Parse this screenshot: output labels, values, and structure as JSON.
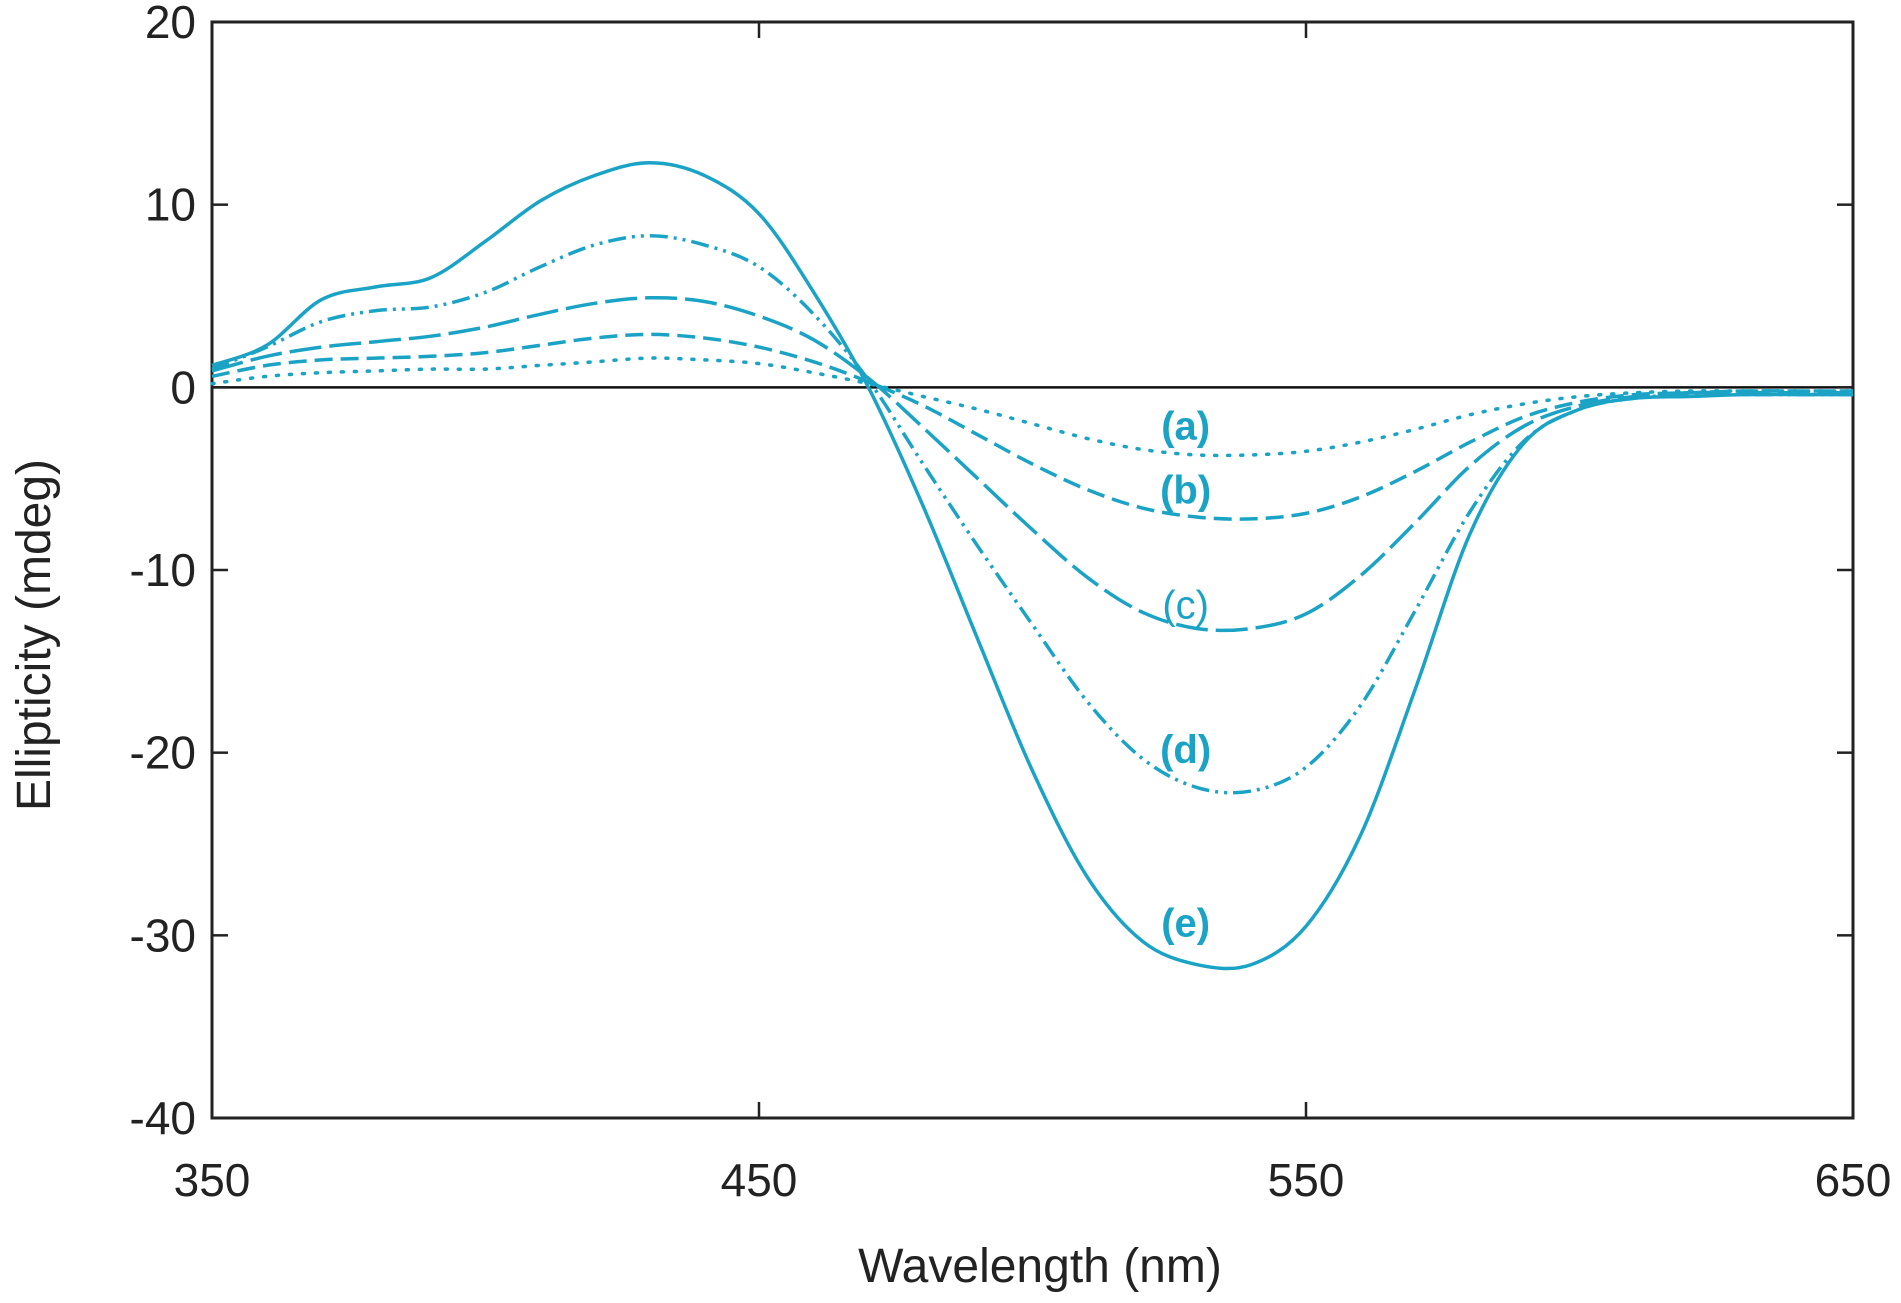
{
  "chart_data": {
    "type": "line",
    "title": "",
    "xlabel": "Wavelength (nm)",
    "ylabel": "Ellipticity (mdeg)",
    "xlim": [
      350,
      650
    ],
    "ylim": [
      -40,
      20
    ],
    "xticks": [
      350,
      450,
      550,
      650
    ],
    "yticks": [
      20,
      10,
      0,
      -10,
      -20,
      -30,
      -40
    ],
    "xtick_labels": [
      "350",
      "450",
      "550",
      "650"
    ],
    "ytick_labels": [
      "20",
      "10",
      "0",
      "-10",
      "-20",
      "-30",
      "-40"
    ],
    "grid": false,
    "zero_line": true,
    "color": "#1ba3c6",
    "x": [
      350,
      360,
      370,
      380,
      390,
      400,
      410,
      420,
      430,
      440,
      450,
      460,
      470,
      480,
      490,
      500,
      510,
      520,
      530,
      540,
      550,
      560,
      570,
      580,
      590,
      600,
      610,
      620,
      630,
      640,
      650
    ],
    "series": [
      {
        "name": "(a)",
        "style": "dotted",
        "values": [
          0.2,
          0.6,
          0.8,
          0.9,
          1.0,
          1.0,
          1.2,
          1.4,
          1.6,
          1.5,
          1.3,
          0.8,
          0.2,
          -0.5,
          -1.2,
          -2.0,
          -2.8,
          -3.4,
          -3.7,
          -3.7,
          -3.5,
          -3.0,
          -2.3,
          -1.5,
          -0.9,
          -0.5,
          -0.3,
          -0.2,
          -0.2,
          -0.2,
          -0.2
        ]
      },
      {
        "name": "(b)",
        "style": "dash",
        "values": [
          0.6,
          1.2,
          1.5,
          1.6,
          1.7,
          1.9,
          2.3,
          2.7,
          2.9,
          2.7,
          2.2,
          1.4,
          0.3,
          -1.0,
          -2.6,
          -4.2,
          -5.6,
          -6.6,
          -7.1,
          -7.2,
          -6.9,
          -6.0,
          -4.6,
          -3.0,
          -1.6,
          -0.8,
          -0.4,
          -0.3,
          -0.2,
          -0.2,
          -0.2
        ]
      },
      {
        "name": "(c)",
        "style": "longdash",
        "values": [
          0.9,
          1.7,
          2.2,
          2.5,
          2.8,
          3.3,
          4.0,
          4.6,
          4.9,
          4.7,
          3.9,
          2.6,
          0.5,
          -2.2,
          -5.0,
          -7.8,
          -10.4,
          -12.3,
          -13.2,
          -13.2,
          -12.4,
          -10.3,
          -7.4,
          -4.3,
          -2.1,
          -1.0,
          -0.5,
          -0.3,
          -0.3,
          -0.3,
          -0.3
        ]
      },
      {
        "name": "(d)",
        "style": "dashdotdot",
        "values": [
          1.0,
          2.2,
          3.6,
          4.2,
          4.4,
          5.2,
          6.6,
          7.8,
          8.3,
          7.8,
          6.6,
          4.0,
          0.4,
          -4.2,
          -8.7,
          -13.0,
          -17.2,
          -20.3,
          -21.9,
          -22.1,
          -20.8,
          -17.4,
          -12.2,
          -6.8,
          -2.9,
          -1.2,
          -0.6,
          -0.4,
          -0.4,
          -0.4,
          -0.4
        ]
      },
      {
        "name": "(e)",
        "style": "solid",
        "values": [
          1.2,
          2.3,
          4.8,
          5.5,
          6.0,
          8.0,
          10.2,
          11.6,
          12.3,
          11.6,
          9.5,
          5.2,
          0.0,
          -6.5,
          -13.8,
          -21.0,
          -26.8,
          -30.3,
          -31.6,
          -31.6,
          -29.5,
          -24.5,
          -16.5,
          -8.0,
          -3.0,
          -1.2,
          -0.6,
          -0.5,
          -0.4,
          -0.4,
          -0.4
        ]
      }
    ],
    "annotations": [
      {
        "text": "(a)",
        "x": 528,
        "y": -2.1
      },
      {
        "text": "(b)",
        "x": 528,
        "y": -5.6
      },
      {
        "text": "(c)",
        "x": 528,
        "y": -11.9,
        "light": true
      },
      {
        "text": "(d)",
        "x": 528,
        "y": -19.8
      },
      {
        "text": "(e)",
        "x": 528,
        "y": -29.3
      }
    ]
  }
}
